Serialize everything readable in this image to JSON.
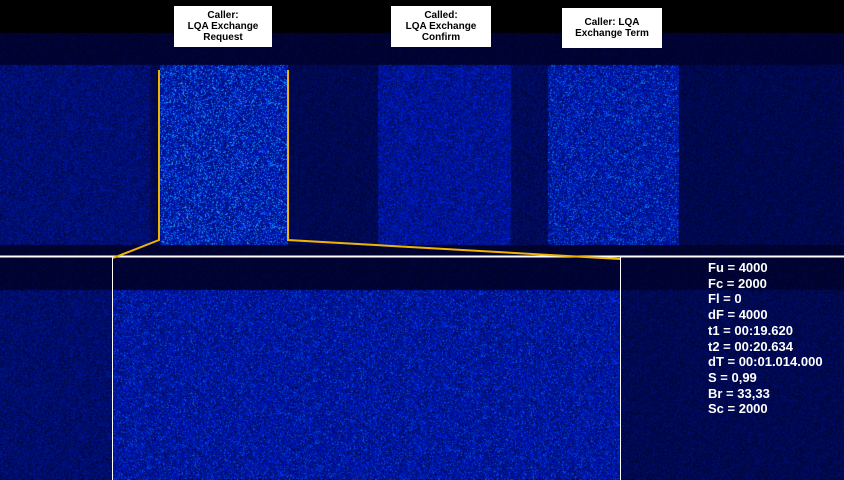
{
  "annotations": [
    {
      "text": "Caller:\nLQA Exchange\nRequest"
    },
    {
      "text": "Called:\nLQA Exchange\nConfirm"
    },
    {
      "text": "Caller: LQA\nExchange Term"
    }
  ],
  "readout": [
    "Fu = 4000",
    "Fc = 2000",
    "Fl = 0",
    "dF = 4000",
    "t1 = 00:19.620",
    "t2 = 00:20.634",
    "dT = 00:01.014.000",
    "S = 0,99",
    "Br = 33,33",
    "Sc = 2000"
  ],
  "colors": {
    "selection": "#f0b400",
    "divider": "#ffffff",
    "spectrum": "#1030ff",
    "highlight": "#40e0ff"
  }
}
